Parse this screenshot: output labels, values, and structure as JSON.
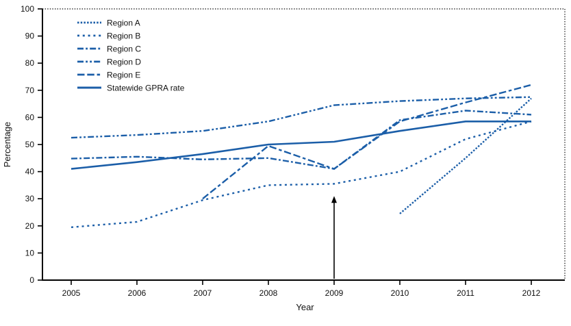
{
  "chart_data": {
    "type": "line",
    "title": "",
    "xlabel": "Year",
    "ylabel": "Percentage",
    "ylim": [
      0,
      100
    ],
    "yticks": [
      0,
      10,
      20,
      30,
      40,
      50,
      60,
      70,
      80,
      90,
      100
    ],
    "categories": [
      "2005",
      "2006",
      "2007",
      "2008",
      "2009",
      "2010",
      "2011",
      "2012"
    ],
    "grid": false,
    "legend_position": "top-left",
    "line_color": "#1b5ea8",
    "axis_color": "#000000",
    "series": [
      {
        "name": "Region A",
        "dash": "dotted-dense",
        "values": [
          null,
          null,
          null,
          null,
          null,
          24.5,
          45,
          67
        ]
      },
      {
        "name": "Region B",
        "dash": "dotted-sparse",
        "values": [
          19.5,
          21.5,
          29.5,
          35,
          35.5,
          40,
          52,
          58.5
        ]
      },
      {
        "name": "Region C",
        "dash": "dash-dot",
        "values": [
          44.8,
          45.5,
          44.5,
          45,
          41,
          59,
          62.5,
          61
        ]
      },
      {
        "name": "Region D",
        "dash": "dash-dot-dot",
        "values": [
          52.5,
          53.5,
          55,
          58.5,
          64.5,
          66,
          67,
          67.5
        ]
      },
      {
        "name": "Region E",
        "dash": "long-dash",
        "values": [
          null,
          null,
          30,
          49.5,
          41,
          58.5,
          65.5,
          72
        ]
      },
      {
        "name": "Statewide GPRA rate",
        "dash": "solid",
        "values": [
          41,
          43.5,
          46.5,
          50,
          51,
          55,
          58.5,
          58.5
        ]
      }
    ],
    "annotations": [
      {
        "type": "arrow",
        "x_category": "2009",
        "from_y": 0.5,
        "to_y": 31
      }
    ]
  }
}
